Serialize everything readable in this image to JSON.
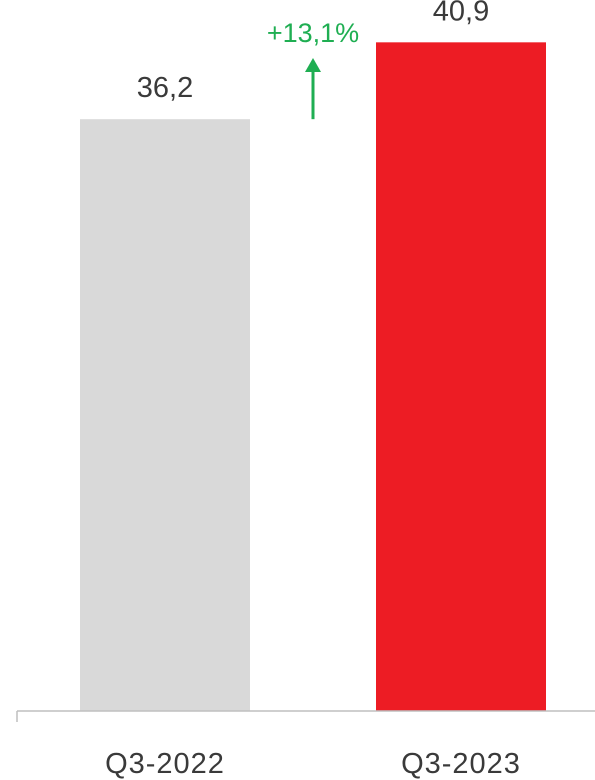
{
  "chart_data": {
    "type": "bar",
    "categories": [
      "Q3-2022",
      "Q3-2023"
    ],
    "values": [
      36.2,
      40.9
    ],
    "value_labels": [
      "36,2",
      "40,9"
    ],
    "bar_colors": [
      "#d9d9d9",
      "#ed1c24"
    ],
    "title": "",
    "xlabel": "",
    "ylabel": "",
    "ylim": [
      0,
      43
    ],
    "grid": false,
    "legend": "none",
    "annotation": {
      "text": "+13,1%",
      "color": "#1fae52",
      "direction": "up",
      "icon": "arrow-up-icon"
    }
  }
}
